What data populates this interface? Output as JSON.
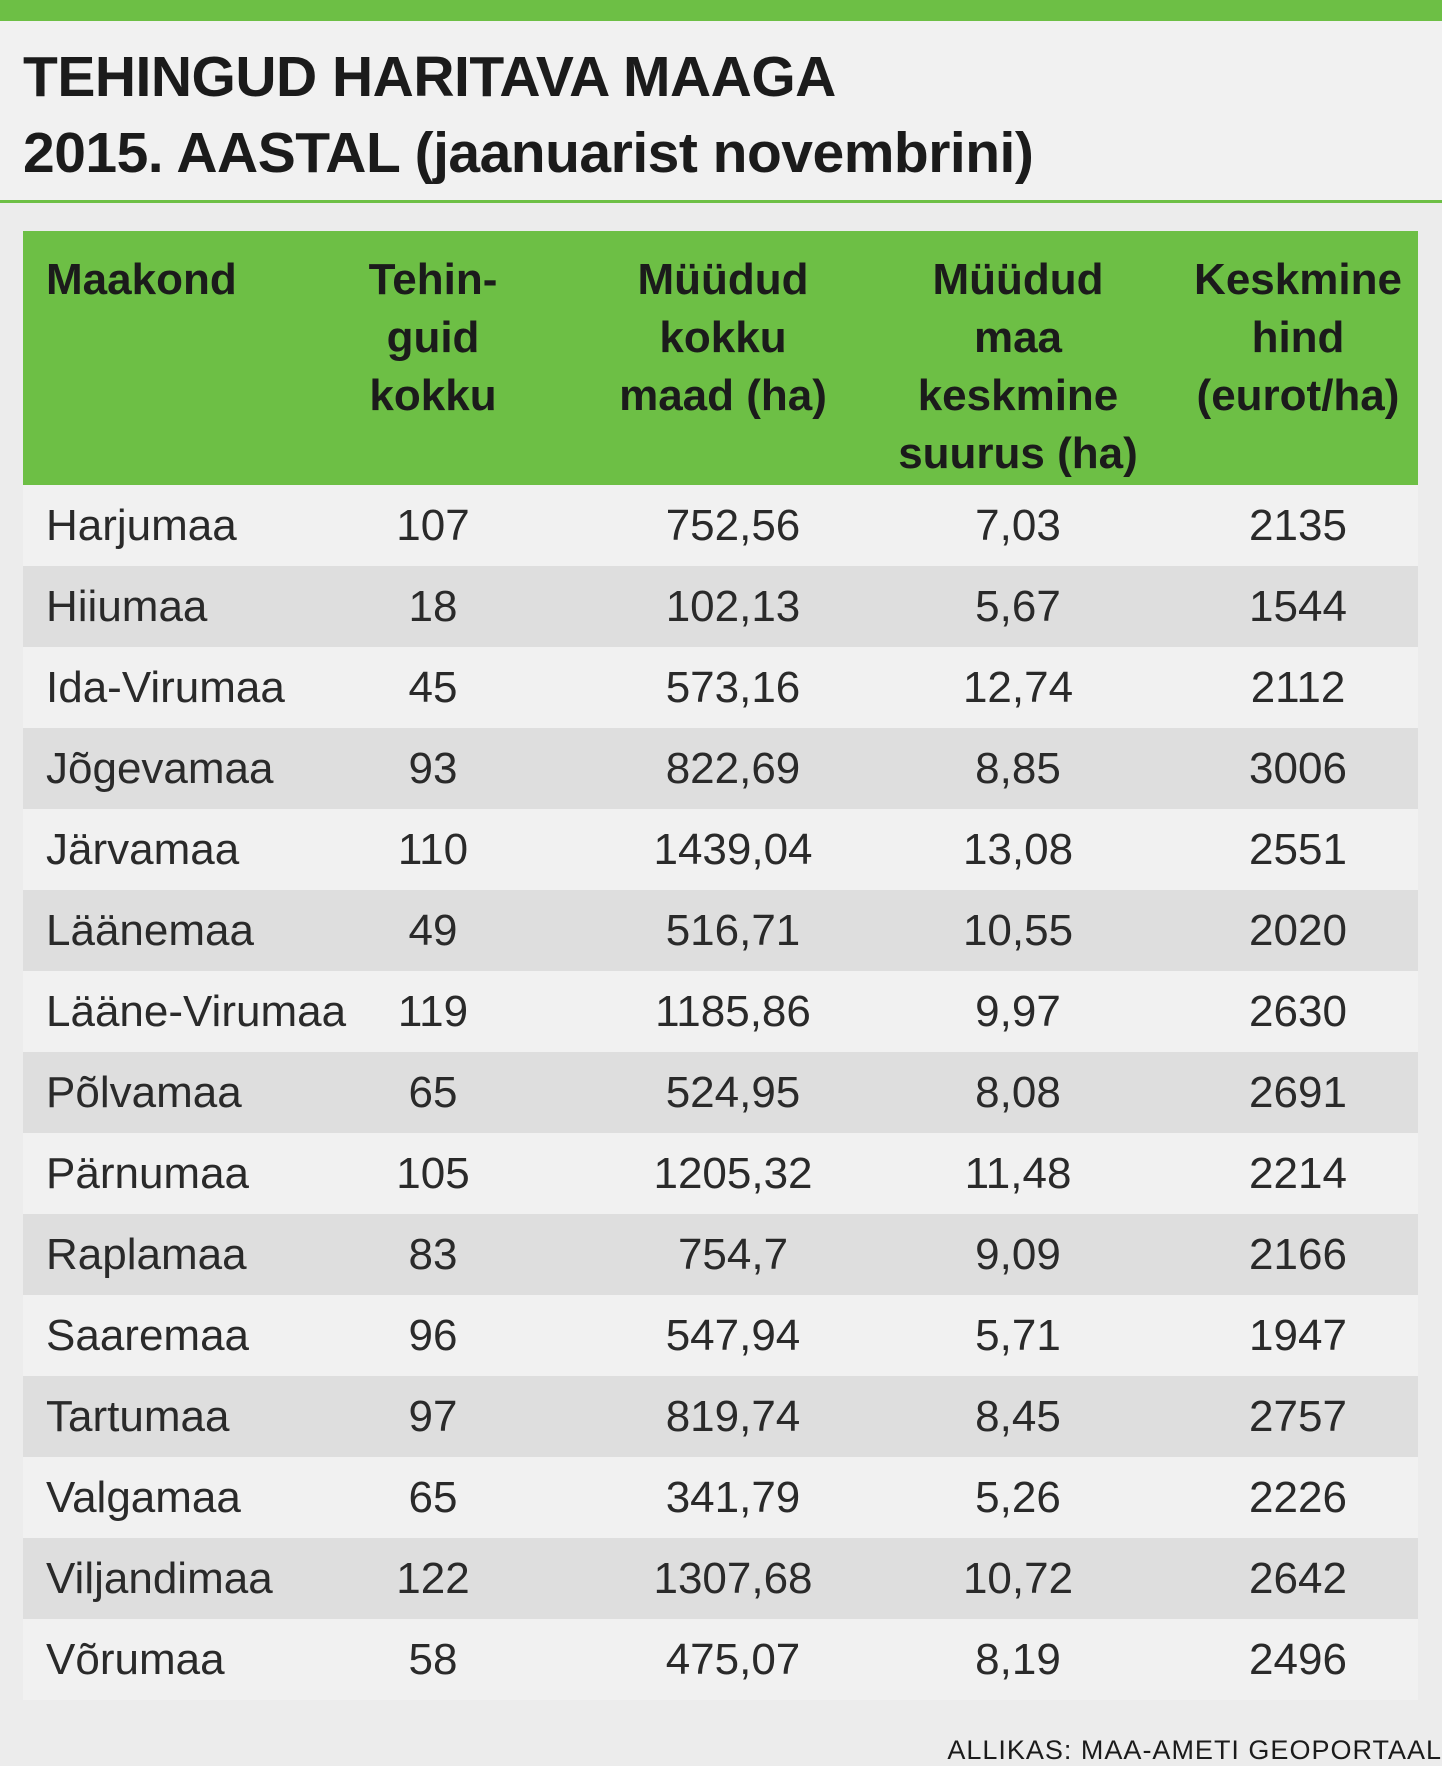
{
  "title": {
    "line1": "TEHINGUD HARITAVA MAAGA",
    "line2": "2015. AASTAL (jaanuarist novembrini)"
  },
  "colors": {
    "accent": "#6dbf45",
    "row_light": "#f1f1f1",
    "row_dark": "#dedede"
  },
  "source": "ALLIKAS: MAA-AMETI GEOPORTAAL",
  "chart_data": {
    "type": "table",
    "title": "TEHINGUD HARITAVA MAAGA 2015. AASTAL (jaanuarist novembrini)",
    "columns": [
      {
        "lines": [
          "Maakond"
        ]
      },
      {
        "lines": [
          "Tehin-",
          "guid",
          "kokku"
        ]
      },
      {
        "lines": [
          "Müüdud",
          "kokku",
          "maad (ha)"
        ]
      },
      {
        "lines": [
          "Müüdud",
          "maa",
          "keskmine",
          "suurus (ha)"
        ]
      },
      {
        "lines": [
          "Keskmine",
          "hind",
          "(eurot/ha)"
        ]
      }
    ],
    "rows": [
      [
        "Harjumaa",
        "107",
        "752,56",
        "7,03",
        "2135"
      ],
      [
        "Hiiumaa",
        "18",
        "102,13",
        "5,67",
        "1544"
      ],
      [
        "Ida-Virumaa",
        "45",
        "573,16",
        "12,74",
        "2112"
      ],
      [
        "Jõgevamaa",
        "93",
        "822,69",
        "8,85",
        "3006"
      ],
      [
        "Järvamaa",
        "110",
        "1439,04",
        "13,08",
        "2551"
      ],
      [
        "Läänemaa",
        "49",
        "516,71",
        "10,55",
        "2020"
      ],
      [
        "Lääne-Virumaa",
        "119",
        "1185,86",
        "9,97",
        "2630"
      ],
      [
        "Põlvamaa",
        "65",
        "524,95",
        "8,08",
        "2691"
      ],
      [
        "Pärnumaa",
        "105",
        "1205,32",
        "11,48",
        "2214"
      ],
      [
        "Raplamaa",
        "83",
        "754,7",
        "9,09",
        "2166"
      ],
      [
        "Saaremaa",
        "96",
        "547,94",
        "5,71",
        "1947"
      ],
      [
        "Tartumaa",
        "97",
        "819,74",
        "8,45",
        "2757"
      ],
      [
        "Valgamaa",
        "65",
        "341,79",
        "5,26",
        "2226"
      ],
      [
        "Viljandimaa",
        "122",
        "1307,68",
        "10,72",
        "2642"
      ],
      [
        "Võrumaa",
        "58",
        "475,07",
        "8,19",
        "2496"
      ]
    ]
  }
}
